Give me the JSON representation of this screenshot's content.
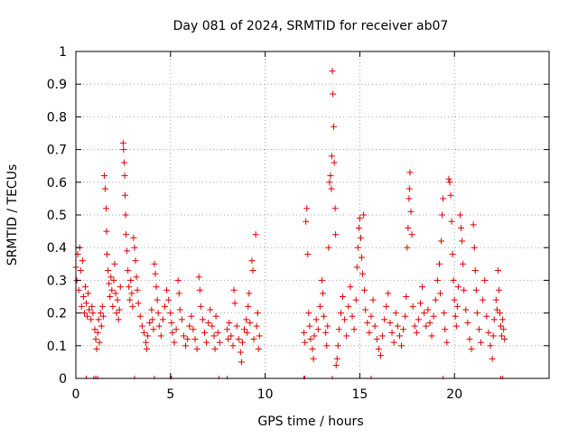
{
  "chart_data": {
    "type": "scatter",
    "title": "Day 081 of 2024, SRMTID for receiver ab07",
    "xlabel": "GPS time / hours",
    "ylabel": "SRMTID / TECUs",
    "xlim": [
      0,
      25
    ],
    "ylim": [
      0,
      1
    ],
    "xticks": [
      "0",
      "5",
      "10",
      "15",
      "20"
    ],
    "xtick_values": [
      0,
      5,
      10,
      15,
      20
    ],
    "yticks": [
      "0",
      "0.1",
      "0.2",
      "0.3",
      "0.4",
      "0.5",
      "0.6",
      "0.7",
      "0.8",
      "0.9",
      "1"
    ],
    "ytick_values": [
      0,
      0.1,
      0.2,
      0.3,
      0.4,
      0.5,
      0.6,
      0.7,
      0.8,
      0.9,
      1.0
    ],
    "grid": true,
    "marker": "+",
    "color": "#e00000",
    "series": [
      {
        "name": "SRMTID",
        "points": [
          [
            0.0,
            0.34
          ],
          [
            0.05,
            0.3
          ],
          [
            0.1,
            0.38
          ],
          [
            0.15,
            0.27
          ],
          [
            0.2,
            0.4
          ],
          [
            0.25,
            0.33
          ],
          [
            0.3,
            0.22
          ],
          [
            0.35,
            0.36
          ],
          [
            0.4,
            0.25
          ],
          [
            0.45,
            0.2
          ],
          [
            0.5,
            0.28
          ],
          [
            0.55,
            0.23
          ],
          [
            0.6,
            0.19
          ],
          [
            0.65,
            0.26
          ],
          [
            0.7,
            0.21
          ],
          [
            0.8,
            0.18
          ],
          [
            0.85,
            0.22
          ],
          [
            0.9,
            0.2
          ],
          [
            1.0,
            0.15
          ],
          [
            1.05,
            0.12
          ],
          [
            1.1,
            0.09
          ],
          [
            1.15,
            0.14
          ],
          [
            1.2,
            0.18
          ],
          [
            1.25,
            0.11
          ],
          [
            1.3,
            0.2
          ],
          [
            1.35,
            0.16
          ],
          [
            1.4,
            0.22
          ],
          [
            1.45,
            0.19
          ],
          [
            1.5,
            0.62
          ],
          [
            1.55,
            0.58
          ],
          [
            1.6,
            0.52
          ],
          [
            1.62,
            0.45
          ],
          [
            1.65,
            0.38
          ],
          [
            1.7,
            0.33
          ],
          [
            1.75,
            0.29
          ],
          [
            1.8,
            0.25
          ],
          [
            1.85,
            0.31
          ],
          [
            1.9,
            0.27
          ],
          [
            1.95,
            0.22
          ],
          [
            2.0,
            0.3
          ],
          [
            2.05,
            0.35
          ],
          [
            2.1,
            0.26
          ],
          [
            2.15,
            0.2
          ],
          [
            2.2,
            0.24
          ],
          [
            2.25,
            0.18
          ],
          [
            2.3,
            0.21
          ],
          [
            2.35,
            0.28
          ],
          [
            2.5,
            0.72
          ],
          [
            2.52,
            0.7
          ],
          [
            2.55,
            0.66
          ],
          [
            2.58,
            0.62
          ],
          [
            2.6,
            0.56
          ],
          [
            2.63,
            0.5
          ],
          [
            2.65,
            0.44
          ],
          [
            2.7,
            0.39
          ],
          [
            2.75,
            0.33
          ],
          [
            2.8,
            0.28
          ],
          [
            2.85,
            0.24
          ],
          [
            2.9,
            0.3
          ],
          [
            2.95,
            0.26
          ],
          [
            3.0,
            0.22
          ],
          [
            3.05,
            0.43
          ],
          [
            3.1,
            0.4
          ],
          [
            3.15,
            0.36
          ],
          [
            3.2,
            0.31
          ],
          [
            3.25,
            0.27
          ],
          [
            3.3,
            0.23
          ],
          [
            3.4,
            0.19
          ],
          [
            3.5,
            0.16
          ],
          [
            3.6,
            0.14
          ],
          [
            3.7,
            0.11
          ],
          [
            3.75,
            0.09
          ],
          [
            3.8,
            0.13
          ],
          [
            3.9,
            0.17
          ],
          [
            4.0,
            0.21
          ],
          [
            4.05,
            0.18
          ],
          [
            4.1,
            0.15
          ],
          [
            4.15,
            0.35
          ],
          [
            4.2,
            0.32
          ],
          [
            4.25,
            0.28
          ],
          [
            4.3,
            0.24
          ],
          [
            4.35,
            0.2
          ],
          [
            4.4,
            0.16
          ],
          [
            4.5,
            0.13
          ],
          [
            4.6,
            0.18
          ],
          [
            4.7,
            0.22
          ],
          [
            4.8,
            0.27
          ],
          [
            4.9,
            0.24
          ],
          [
            5.0,
            0.2
          ],
          [
            5.05,
            0.17
          ],
          [
            5.1,
            0.14
          ],
          [
            5.2,
            0.11
          ],
          [
            5.3,
            0.15
          ],
          [
            5.4,
            0.3
          ],
          [
            5.45,
            0.26
          ],
          [
            5.5,
            0.21
          ],
          [
            5.6,
            0.18
          ],
          [
            5.7,
            0.13
          ],
          [
            5.8,
            0.1
          ],
          [
            5.9,
            0.12
          ],
          [
            6.0,
            0.16
          ],
          [
            6.1,
            0.19
          ],
          [
            6.2,
            0.15
          ],
          [
            6.3,
            0.12
          ],
          [
            6.4,
            0.09
          ],
          [
            6.5,
            0.31
          ],
          [
            6.55,
            0.27
          ],
          [
            6.6,
            0.22
          ],
          [
            6.7,
            0.18
          ],
          [
            6.8,
            0.14
          ],
          [
            6.9,
            0.11
          ],
          [
            7.0,
            0.17
          ],
          [
            7.1,
            0.21
          ],
          [
            7.2,
            0.16
          ],
          [
            7.3,
            0.13
          ],
          [
            7.35,
            0.09
          ],
          [
            7.4,
            0.19
          ],
          [
            7.5,
            0.14
          ],
          [
            7.6,
            0.11
          ],
          [
            8.0,
            0.15
          ],
          [
            8.05,
            0.12
          ],
          [
            8.1,
            0.17
          ],
          [
            8.2,
            0.13
          ],
          [
            8.3,
            0.1
          ],
          [
            8.35,
            0.27
          ],
          [
            8.4,
            0.23
          ],
          [
            8.5,
            0.16
          ],
          [
            8.6,
            0.12
          ],
          [
            8.7,
            0.08
          ],
          [
            8.75,
            0.05
          ],
          [
            8.8,
            0.11
          ],
          [
            8.9,
            0.15
          ],
          [
            9.0,
            0.18
          ],
          [
            9.05,
            0.14
          ],
          [
            9.1,
            0.22
          ],
          [
            9.15,
            0.26
          ],
          [
            9.2,
            0.17
          ],
          [
            9.3,
            0.36
          ],
          [
            9.35,
            0.33
          ],
          [
            9.4,
            0.12
          ],
          [
            9.5,
            0.44
          ],
          [
            9.55,
            0.16
          ],
          [
            9.6,
            0.2
          ],
          [
            9.65,
            0.09
          ],
          [
            9.7,
            0.13
          ],
          [
            12.05,
            0.14
          ],
          [
            12.1,
            0.11
          ],
          [
            12.15,
            0.48
          ],
          [
            12.2,
            0.52
          ],
          [
            12.25,
            0.38
          ],
          [
            12.3,
            0.2
          ],
          [
            12.35,
            0.16
          ],
          [
            12.4,
            0.12
          ],
          [
            12.5,
            0.09
          ],
          [
            12.55,
            0.06
          ],
          [
            12.6,
            0.13
          ],
          [
            12.7,
            0.18
          ],
          [
            12.8,
            0.15
          ],
          [
            12.9,
            0.22
          ],
          [
            13.0,
            0.3
          ],
          [
            13.05,
            0.26
          ],
          [
            13.1,
            0.19
          ],
          [
            13.2,
            0.14
          ],
          [
            13.25,
            0.1
          ],
          [
            13.3,
            0.16
          ],
          [
            13.35,
            0.4
          ],
          [
            13.4,
            0.6
          ],
          [
            13.45,
            0.62
          ],
          [
            13.5,
            0.58
          ],
          [
            13.52,
            0.68
          ],
          [
            13.55,
            0.94
          ],
          [
            13.58,
            0.87
          ],
          [
            13.62,
            0.77
          ],
          [
            13.65,
            0.66
          ],
          [
            13.7,
            0.52
          ],
          [
            13.72,
            0.44
          ],
          [
            13.75,
            0.04
          ],
          [
            13.8,
            0.06
          ],
          [
            13.85,
            0.1
          ],
          [
            13.9,
            0.15
          ],
          [
            14.0,
            0.2
          ],
          [
            14.1,
            0.25
          ],
          [
            14.2,
            0.18
          ],
          [
            14.3,
            0.13
          ],
          [
            14.4,
            0.22
          ],
          [
            14.5,
            0.28
          ],
          [
            14.6,
            0.19
          ],
          [
            14.7,
            0.15
          ],
          [
            14.8,
            0.24
          ],
          [
            14.85,
            0.34
          ],
          [
            14.9,
            0.4
          ],
          [
            14.95,
            0.46
          ],
          [
            15.0,
            0.49
          ],
          [
            15.05,
            0.43
          ],
          [
            15.1,
            0.37
          ],
          [
            15.15,
            0.32
          ],
          [
            15.2,
            0.5
          ],
          [
            15.25,
            0.27
          ],
          [
            15.3,
            0.21
          ],
          [
            15.4,
            0.17
          ],
          [
            15.5,
            0.14
          ],
          [
            15.6,
            0.19
          ],
          [
            15.7,
            0.24
          ],
          [
            15.8,
            0.16
          ],
          [
            15.9,
            0.12
          ],
          [
            16.0,
            0.09
          ],
          [
            16.1,
            0.07
          ],
          [
            16.2,
            0.13
          ],
          [
            16.3,
            0.18
          ],
          [
            16.4,
            0.22
          ],
          [
            16.5,
            0.26
          ],
          [
            16.6,
            0.17
          ],
          [
            16.7,
            0.14
          ],
          [
            16.8,
            0.11
          ],
          [
            16.9,
            0.2
          ],
          [
            17.0,
            0.16
          ],
          [
            17.1,
            0.13
          ],
          [
            17.2,
            0.1
          ],
          [
            17.3,
            0.15
          ],
          [
            17.4,
            0.19
          ],
          [
            17.45,
            0.25
          ],
          [
            17.5,
            0.4
          ],
          [
            17.55,
            0.46
          ],
          [
            17.6,
            0.55
          ],
          [
            17.62,
            0.58
          ],
          [
            17.65,
            0.63
          ],
          [
            17.7,
            0.51
          ],
          [
            17.75,
            0.44
          ],
          [
            17.8,
            0.22
          ],
          [
            17.9,
            0.16
          ],
          [
            18.0,
            0.14
          ],
          [
            18.1,
            0.18
          ],
          [
            18.2,
            0.23
          ],
          [
            18.3,
            0.28
          ],
          [
            18.4,
            0.2
          ],
          [
            18.5,
            0.16
          ],
          [
            18.6,
            0.21
          ],
          [
            18.7,
            0.17
          ],
          [
            18.8,
            0.13
          ],
          [
            18.9,
            0.19
          ],
          [
            19.0,
            0.24
          ],
          [
            19.1,
            0.3
          ],
          [
            19.2,
            0.35
          ],
          [
            19.25,
            0.26
          ],
          [
            19.3,
            0.42
          ],
          [
            19.35,
            0.5
          ],
          [
            19.4,
            0.55
          ],
          [
            19.45,
            0.2
          ],
          [
            19.5,
            0.15
          ],
          [
            19.6,
            0.11
          ],
          [
            19.7,
            0.61
          ],
          [
            19.75,
            0.6
          ],
          [
            19.8,
            0.56
          ],
          [
            19.85,
            0.48
          ],
          [
            19.9,
            0.38
          ],
          [
            19.95,
            0.3
          ],
          [
            20.0,
            0.24
          ],
          [
            20.05,
            0.19
          ],
          [
            20.1,
            0.16
          ],
          [
            20.15,
            0.22
          ],
          [
            20.2,
            0.28
          ],
          [
            20.3,
            0.5
          ],
          [
            20.35,
            0.46
          ],
          [
            20.4,
            0.42
          ],
          [
            20.45,
            0.35
          ],
          [
            20.5,
            0.27
          ],
          [
            20.6,
            0.21
          ],
          [
            20.7,
            0.17
          ],
          [
            20.8,
            0.12
          ],
          [
            20.9,
            0.09
          ],
          [
            21.0,
            0.47
          ],
          [
            21.05,
            0.4
          ],
          [
            21.1,
            0.33
          ],
          [
            21.15,
            0.27
          ],
          [
            21.2,
            0.2
          ],
          [
            21.3,
            0.15
          ],
          [
            21.4,
            0.11
          ],
          [
            21.5,
            0.24
          ],
          [
            21.6,
            0.3
          ],
          [
            21.7,
            0.19
          ],
          [
            21.8,
            0.14
          ],
          [
            21.9,
            0.1
          ],
          [
            22.0,
            0.06
          ],
          [
            22.05,
            0.13
          ],
          [
            22.1,
            0.18
          ],
          [
            22.2,
            0.24
          ],
          [
            22.25,
            0.21
          ],
          [
            22.3,
            0.33
          ],
          [
            22.35,
            0.27
          ],
          [
            22.4,
            0.2
          ],
          [
            22.45,
            0.16
          ],
          [
            22.5,
            0.13
          ],
          [
            22.55,
            0.18
          ],
          [
            22.6,
            0.15
          ],
          [
            22.65,
            0.12
          ]
        ],
        "rug": [
          0.55,
          0.95,
          1.05,
          1.15,
          3.1,
          4.15,
          5.0,
          5.05,
          7.55,
          8.0,
          12.05,
          12.1,
          13.55,
          15.6,
          19.4,
          22.45,
          22.55
        ]
      }
    ]
  }
}
